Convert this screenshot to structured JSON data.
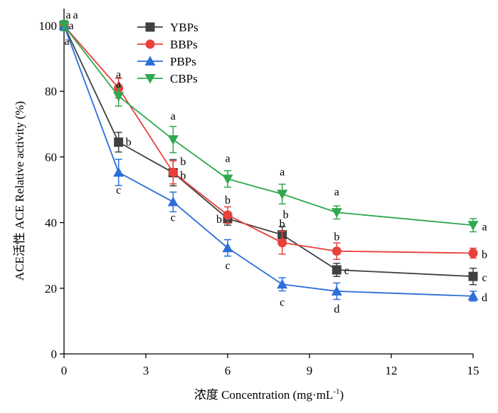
{
  "chart_data": {
    "type": "line",
    "xlabel": "浓度 Concentration (mg·mL",
    "xlabel_sup": "-1",
    "xlabel_suffix": ")",
    "ylabel": "ACE活性 ACE Relative activity (%)",
    "xlim": [
      0,
      15
    ],
    "ylim": [
      0,
      105
    ],
    "x_ticks": [
      0,
      3,
      6,
      9,
      12,
      15
    ],
    "y_ticks": [
      0,
      20,
      40,
      60,
      80,
      100
    ],
    "x": [
      0,
      2,
      4,
      6,
      8,
      10,
      15
    ],
    "legend_position": "top-left",
    "grid": false,
    "series": [
      {
        "name": "YBPs",
        "color": "#404040",
        "marker": "square",
        "values": [
          100,
          64.5,
          55.2,
          41.2,
          36.3,
          25.6,
          23.6
        ],
        "errors": [
          1.5,
          3,
          4,
          2,
          2.5,
          2,
          2.5
        ],
        "sig": [
          "a",
          "b",
          "b",
          "b",
          "b",
          "c",
          "c"
        ]
      },
      {
        "name": "BBPs",
        "color": "#e8403b",
        "marker": "circle",
        "values": [
          100,
          81,
          55.3,
          42.3,
          33.9,
          31.3,
          30.7
        ],
        "errors": [
          1.5,
          3,
          3.5,
          2.5,
          3.5,
          2.5,
          1.5
        ],
        "sig": [
          "a",
          "a",
          "b",
          "b",
          "b",
          "b",
          "b"
        ]
      },
      {
        "name": "PBPs",
        "color": "#2c6fd8",
        "marker": "triangle-up",
        "values": [
          100,
          55.3,
          46.3,
          32.3,
          21.2,
          19.1,
          17.6
        ],
        "errors": [
          1.5,
          4,
          3,
          2.5,
          2,
          2.5,
          1.5
        ],
        "sig": [
          "a",
          "c",
          "c",
          "c",
          "c",
          "d",
          "d"
        ]
      },
      {
        "name": "CBPs",
        "color": "#2fa84f",
        "marker": "triangle-down",
        "values": [
          100,
          78.5,
          65.3,
          53.3,
          48.7,
          43.1,
          39.2
        ],
        "errors": [
          1.5,
          3,
          4,
          2.5,
          3,
          2,
          2
        ],
        "sig": [
          "a",
          "a",
          "a",
          "a",
          "a",
          "a",
          "a"
        ]
      }
    ]
  }
}
